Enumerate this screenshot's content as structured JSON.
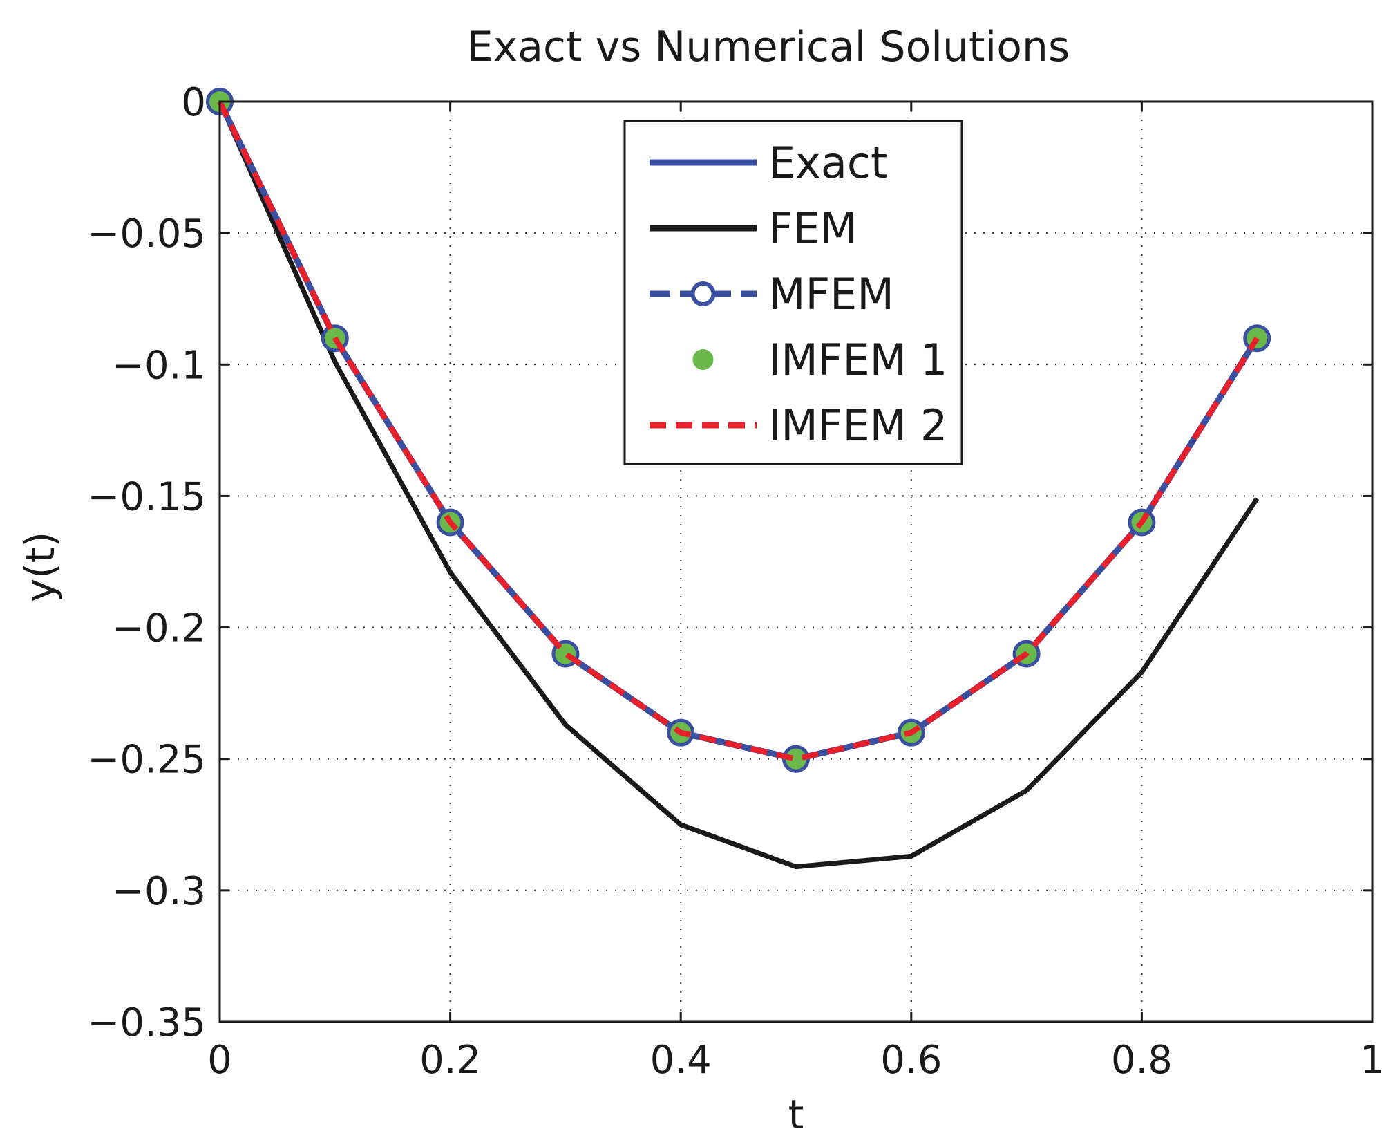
{
  "chart_data": {
    "type": "line",
    "title": "Exact vs Numerical Solutions",
    "xlabel": "t",
    "ylabel": "y(t)",
    "xlim": [
      0,
      1
    ],
    "ylim": [
      -0.35,
      0
    ],
    "grid": true,
    "legend_position": "top-center",
    "x_ticks": [
      0,
      0.2,
      0.4,
      0.6,
      0.8,
      1
    ],
    "x_tick_labels": [
      "0",
      "0.2",
      "0.4",
      "0.6",
      "0.8",
      "1"
    ],
    "y_ticks": [
      0,
      -0.05,
      -0.1,
      -0.15,
      -0.2,
      -0.25,
      -0.3,
      -0.35
    ],
    "y_tick_labels": [
      "0",
      "−0.05",
      "−0.1",
      "−0.15",
      "−0.2",
      "−0.25",
      "−0.3",
      "−0.35"
    ],
    "x": [
      0,
      0.1,
      0.2,
      0.3,
      0.4,
      0.5,
      0.6,
      0.7,
      0.8,
      0.9
    ],
    "series": [
      {
        "name": "Exact",
        "style": "solid",
        "marker": "none",
        "color": "#3a4fa0",
        "values": [
          0,
          -0.09,
          -0.16,
          -0.21,
          -0.24,
          -0.25,
          -0.24,
          -0.21,
          -0.16,
          -0.09
        ]
      },
      {
        "name": "FEM",
        "style": "solid",
        "marker": "none",
        "color": "#1a1a1a",
        "values": [
          0,
          -0.099,
          -0.179,
          -0.237,
          -0.275,
          -0.291,
          -0.287,
          -0.262,
          -0.217,
          -0.151
        ]
      },
      {
        "name": "MFEM",
        "style": "dashed",
        "marker": "circle",
        "color": "#3a4fa0",
        "values": [
          0,
          -0.09,
          -0.16,
          -0.21,
          -0.24,
          -0.25,
          -0.24,
          -0.21,
          -0.16,
          -0.09
        ]
      },
      {
        "name": "IMFEM 1",
        "style": "none",
        "marker": "dot",
        "color": "#6ab94a",
        "values": [
          0,
          -0.09,
          -0.16,
          -0.21,
          -0.24,
          -0.25,
          -0.24,
          -0.21,
          -0.16,
          -0.09
        ]
      },
      {
        "name": "IMFEM 2",
        "style": "dashed",
        "marker": "none",
        "color": "#e8202a",
        "values": [
          0,
          -0.09,
          -0.16,
          -0.21,
          -0.24,
          -0.25,
          -0.24,
          -0.21,
          -0.16,
          -0.09
        ]
      }
    ]
  }
}
